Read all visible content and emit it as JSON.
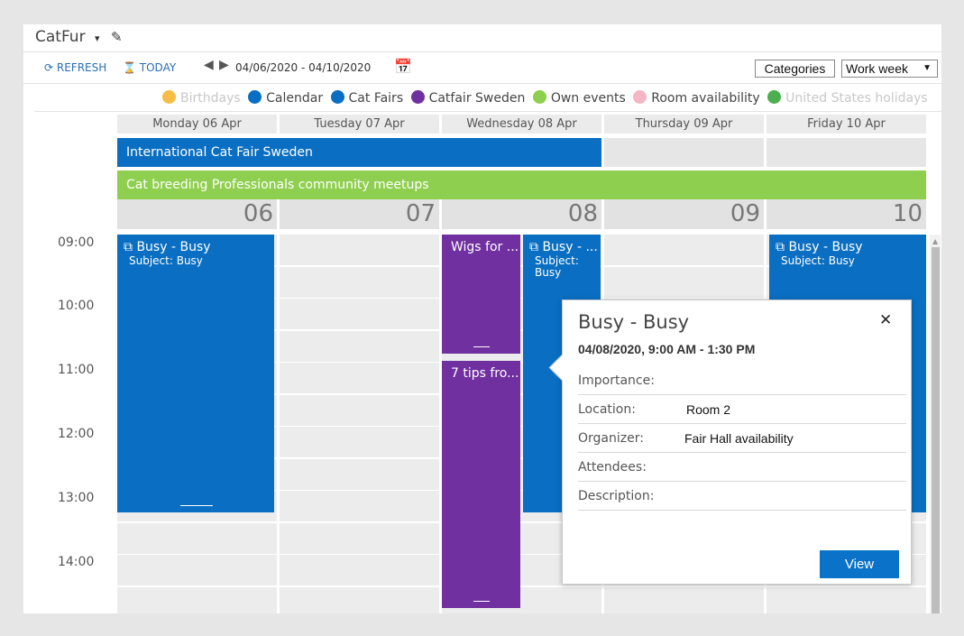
{
  "app": {
    "title": "CatFur",
    "caret_icon": "▾",
    "edit_icon": "✎"
  },
  "toolbar": {
    "refresh_label": "REFRESH",
    "today_label": "TODAY",
    "refresh_icon": "⟳",
    "today_icon": "⌛",
    "prev_icon": "◀",
    "next_icon": "▶",
    "date_range": "04/06/2020 - 04/10/2020",
    "calendar_icon": "📅",
    "categories_label": "Categories",
    "view_select": "Work week",
    "view_caret": "▼"
  },
  "legend": [
    {
      "label": "Birthdays",
      "color": "#f6be46",
      "enabled": false
    },
    {
      "label": "Calendar",
      "color": "#0a6fc2",
      "enabled": true
    },
    {
      "label": "Cat Fairs",
      "color": "#0a6fc2",
      "enabled": true
    },
    {
      "label": "Catfair Sweden",
      "color": "#7030a0",
      "enabled": true
    },
    {
      "label": "Own events",
      "color": "#8fcf4f",
      "enabled": true
    },
    {
      "label": "Room availability",
      "color": "#f4b6c2",
      "enabled": true
    },
    {
      "label": "United States holidays",
      "color": "#4caf50",
      "enabled": false
    }
  ],
  "days": [
    {
      "header": "Monday 06 Apr",
      "num": "06"
    },
    {
      "header": "Tuesday 07 Apr",
      "num": "07"
    },
    {
      "header": "Wednesday 08 Apr",
      "num": "08"
    },
    {
      "header": "Thursday 09 Apr",
      "num": "09"
    },
    {
      "header": "Friday 10 Apr",
      "num": "10"
    }
  ],
  "all_day_events": [
    {
      "title": "International Cat Fair Sweden",
      "color": "#0a6fc2"
    },
    {
      "title": "Cat breeding Professionals community meetups",
      "color": "#8fcf4f"
    }
  ],
  "times": [
    "09:00",
    "10:00",
    "11:00",
    "12:00",
    "13:00",
    "14:00"
  ],
  "events": {
    "mon_busy": {
      "icon": "⧉",
      "title": "Busy - Busy",
      "sub": "Subject: Busy",
      "color": "#0a6fc2"
    },
    "wed_wigs": {
      "title": "Wigs for ...",
      "color": "#7030a0"
    },
    "wed_tips": {
      "title": "7 tips fro...",
      "color": "#7030a0"
    },
    "wed_busy": {
      "icon": "⧉",
      "title": "Busy - ...",
      "sub": "Subject: Busy",
      "color": "#0a6fc2"
    },
    "fri_busy": {
      "icon": "⧉",
      "title": "Busy - Busy",
      "sub": "Subject: Busy",
      "color": "#0a6fc2"
    }
  },
  "popup": {
    "title": "Busy - Busy",
    "close_icon": "✕",
    "time": "04/08/2020, 9:00 AM - 1:30 PM",
    "importance_label": "Importance:",
    "importance_value": "",
    "location_label": "Location:",
    "location_value": "Room 2",
    "organizer_label": "Organizer:",
    "organizer_value": "Fair Hall availability",
    "attendees_label": "Attendees:",
    "attendees_value": "",
    "description_label": "Description:",
    "description_value": "",
    "view_button": "View"
  }
}
